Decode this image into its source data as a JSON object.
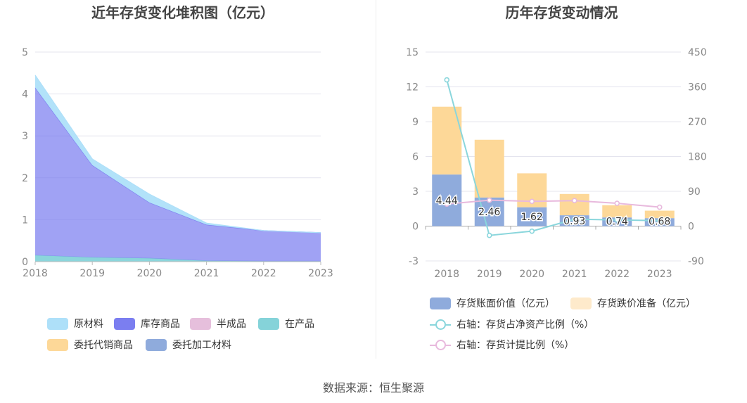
{
  "left_title": "近年存货变化堆积图（亿元）",
  "right_title": "历年存货变动情况",
  "source": "数据来源：恒生聚源",
  "colors": {
    "raw": "#aee0f9",
    "goods": "#7b7ef0",
    "semi": "#e6bfdc",
    "wip": "#85d3d9",
    "consign_sell": "#fdd898",
    "consign_proc": "#8fabdc",
    "book_bar": "#8fabdc",
    "impair_bar": "#fdd898",
    "ratio_line": "#8ad6dc",
    "provision_line": "#e8b9dd"
  },
  "chart_data": [
    {
      "type": "area",
      "stacked": true,
      "x": [
        "2018",
        "2019",
        "2020",
        "2021",
        "2022",
        "2023"
      ],
      "ylim": [
        0,
        5
      ],
      "yticks": [
        "0",
        "1",
        "2",
        "3",
        "4",
        "5"
      ],
      "series": [
        {
          "name": "在产品",
          "color_key": "wip",
          "values": [
            0.15,
            0.1,
            0.08,
            0.02,
            0.01,
            0.01
          ]
        },
        {
          "name": "库存商品",
          "color_key": "goods",
          "values": [
            4.0,
            2.2,
            1.33,
            0.86,
            0.73,
            0.68
          ]
        },
        {
          "name": "原材料",
          "color_key": "raw",
          "values": [
            0.3,
            0.15,
            0.2,
            0.04,
            0.0,
            0.0
          ]
        },
        {
          "name": "半成品",
          "color_key": "semi",
          "values": [
            0,
            0,
            0,
            0,
            0,
            0
          ]
        },
        {
          "name": "委托代销商品",
          "color_key": "consign_sell",
          "values": [
            0,
            0,
            0,
            0,
            0,
            0
          ]
        },
        {
          "name": "委托加工材料",
          "color_key": "consign_proc",
          "values": [
            0,
            0,
            0,
            0,
            0,
            0
          ]
        }
      ],
      "legend": [
        "原材料",
        "库存商品",
        "半成品",
        "在产品",
        "委托代销商品",
        "委托加工材料"
      ],
      "legend_placement": "bottom"
    },
    {
      "type": "bar",
      "x": [
        "2018",
        "2019",
        "2020",
        "2021",
        "2022",
        "2023"
      ],
      "ylim": [
        -3,
        15
      ],
      "yticks": [
        "-3",
        "0",
        "3",
        "6",
        "9",
        "12",
        "15"
      ],
      "y2lim": [
        -90,
        450
      ],
      "y2ticks": [
        "-90",
        "0",
        "90",
        "180",
        "270",
        "360",
        "450"
      ],
      "series": [
        {
          "name": "存货账面价值（亿元）",
          "kind": "bar",
          "color_key": "book_bar",
          "values": [
            4.44,
            2.46,
            1.62,
            0.93,
            0.74,
            0.68
          ],
          "labels": [
            "4.44",
            "2.46",
            "1.62",
            "0.93",
            "0.74",
            "0.68"
          ]
        },
        {
          "name": "存货跌价准备（亿元）",
          "kind": "bar",
          "color_key": "impair_bar",
          "values": [
            5.85,
            4.98,
            2.93,
            1.84,
            1.06,
            0.65
          ]
        },
        {
          "name": "右轴：存货占净资产比例（%）",
          "kind": "line",
          "axis": "right",
          "color_key": "ratio_line",
          "values": [
            378,
            -24,
            -13,
            18,
            16,
            14
          ]
        },
        {
          "name": "右轴：存货计提比例（%）",
          "kind": "line",
          "axis": "right",
          "color_key": "provision_line",
          "values": [
            57,
            67,
            64,
            66,
            59,
            49
          ]
        }
      ],
      "legend_placement": "bottom"
    }
  ]
}
